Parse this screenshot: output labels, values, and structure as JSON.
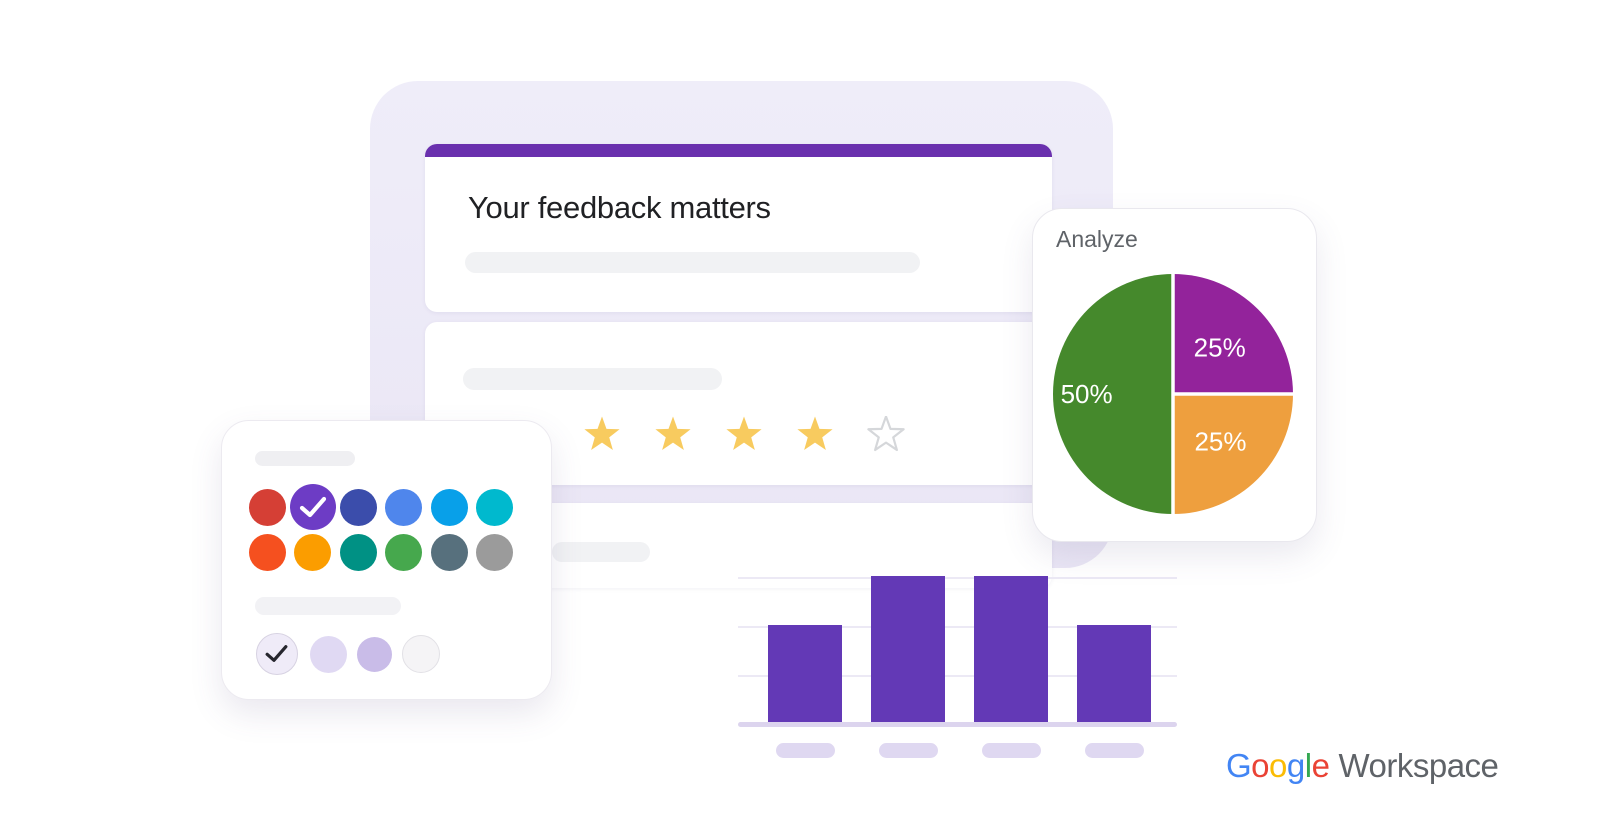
{
  "form": {
    "title": "Your feedback matters",
    "theme_color": "#6A30AE",
    "rating": {
      "filled_stars": 4,
      "total_stars": 5,
      "star_color": "#F8CB5F",
      "empty_star_color": "#D5D7DA"
    }
  },
  "color_picker": {
    "palette_row1": [
      "#D53F35",
      "#6D3CC5",
      "#3B4DAB",
      "#4F86EC",
      "#08A0E9",
      "#00B9CE"
    ],
    "palette_row2": [
      "#F5501F",
      "#FB9D00",
      "#009184",
      "#46A84D",
      "#57707D",
      "#9B9B9B"
    ],
    "selected_index": 1,
    "background_options": [
      "#EFEBF8",
      "#E0D9F3",
      "#C9BCE8",
      "#F5F4F6"
    ],
    "selected_background_index": 0
  },
  "analyze": {
    "title": "Analyze"
  },
  "chart_data": [
    {
      "type": "pie",
      "title": "Analyze",
      "slices": [
        {
          "label": "25%",
          "value": 25,
          "color": "#93239B",
          "label_r": 0.55
        },
        {
          "label": "25%",
          "value": 25,
          "color": "#EE9F3E",
          "label_r": 0.56
        },
        {
          "label": "50%",
          "value": 50,
          "color": "#45892C",
          "label_r": 0.72
        }
      ],
      "start_angle_deg": 0,
      "direction": "clockwise",
      "label_color": "#FFFFFF",
      "separator_color": "#FFFFFF",
      "legend_position": "none"
    },
    {
      "type": "bar",
      "categories": [
        "",
        "",
        "",
        ""
      ],
      "values": [
        2,
        3,
        3,
        2
      ],
      "ylim": [
        0,
        3
      ],
      "bar_color": "#6339B6",
      "grid": true,
      "gridline_color": "#ECE9F5",
      "baseline_color": "#DCD4EE",
      "tick_placeholder_color": "#DFD8F1",
      "xlabel": "",
      "ylabel": ""
    }
  ],
  "logo": {
    "word": "Google",
    "letter_colors": [
      "#4285F4",
      "#EA4335",
      "#FBBC05",
      "#4285F4",
      "#34A853",
      "#EA4335"
    ],
    "suffix": "Workspace",
    "suffix_color": "#5F6368"
  }
}
